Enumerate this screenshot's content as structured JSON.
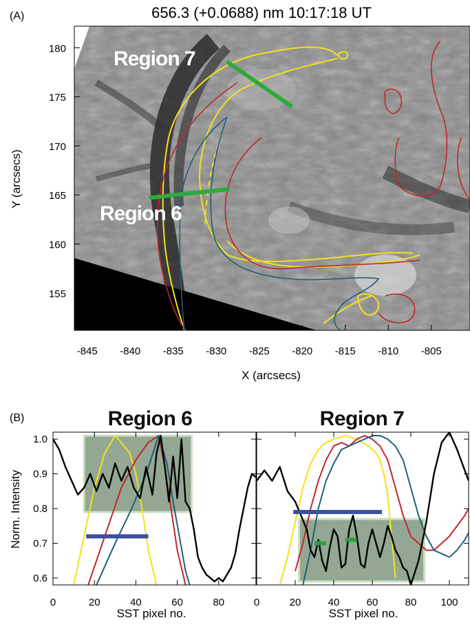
{
  "panel_a": {
    "label": "(A)",
    "title": "656.3 (+0.0688) nm   10:17:18 UT",
    "region7_label": "Region 7",
    "region6_label": "Region 6",
    "colors": {
      "slit": "#2eaa3c",
      "yellow": "#f2e21a",
      "red": "#c2262c",
      "blue": "#1f5f78",
      "image_dark": "#202020"
    },
    "chart_data": {
      "type": "image",
      "xlabel": "X (arcsecs)",
      "ylabel": "Y (arcsecs)",
      "xlim": [
        -846.5,
        -800.5
      ],
      "ylim": [
        151.2,
        182.2
      ],
      "x_ticks": [
        -845,
        -840,
        -835,
        -830,
        -825,
        -820,
        -815,
        -810,
        -805
      ],
      "y_ticks": [
        155,
        160,
        165,
        170,
        175,
        180
      ],
      "slits": [
        {
          "name": "Region 7",
          "x": [
            -828.8,
            -821.2
          ],
          "y": [
            178.6,
            174.0
          ]
        },
        {
          "name": "Region 6",
          "x": [
            -837.8,
            -828.5
          ],
          "y": [
            164.7,
            165.6
          ]
        }
      ]
    }
  },
  "panel_b": {
    "label": "(B)",
    "colors": {
      "black": "#000000",
      "yellow": "#f2e21a",
      "red": "#c2262c",
      "teal": "#1f5f78",
      "blue_bar": "#3c4fa0",
      "green_bar": "#2aa040",
      "shade": "#6f8a6e"
    },
    "chart_data": [
      {
        "type": "line",
        "title": "Region 6",
        "xlabel": "SST pixel no.",
        "ylabel": "Norm. Intensity",
        "xlim": [
          0,
          98
        ],
        "ylim": [
          0.58,
          1.02
        ],
        "x_ticks": [
          0,
          20,
          40,
          60,
          80
        ],
        "y_ticks": [
          0.6,
          0.7,
          0.8,
          0.9,
          1.0
        ],
        "shaded_box": {
          "x": [
            15,
            67
          ],
          "y": [
            0.79,
            1.01
          ]
        },
        "bars": [
          {
            "color": "blue",
            "x": [
              16,
              46
            ],
            "y": 0.72
          }
        ],
        "series": [
          {
            "color": "black",
            "x": [
              0,
              3,
              6,
              9,
              12,
              15,
              18,
              21,
              24,
              27,
              30,
              33,
              36,
              39,
              42,
              45,
              48,
              50,
              52,
              54,
              56,
              58,
              60,
              62,
              64,
              66,
              68,
              70,
              72,
              74,
              76,
              78,
              80,
              82,
              84,
              86,
              88,
              90,
              92,
              94,
              96,
              98
            ],
            "y": [
              1.0,
              0.97,
              0.92,
              0.88,
              0.84,
              0.86,
              0.9,
              0.85,
              0.9,
              0.86,
              0.93,
              0.88,
              0.92,
              0.86,
              0.83,
              0.92,
              0.84,
              0.96,
              1.01,
              0.92,
              0.82,
              0.95,
              0.83,
              1.0,
              0.82,
              0.8,
              0.74,
              0.66,
              0.63,
              0.61,
              0.6,
              0.59,
              0.6,
              0.59,
              0.61,
              0.63,
              0.67,
              0.74,
              0.8,
              0.86,
              0.9,
              0.89
            ]
          },
          {
            "color": "yellow",
            "x": [
              10,
              15,
              20,
              25,
              30,
              33,
              37,
              40,
              43,
              46,
              50
            ],
            "y": [
              0.58,
              0.72,
              0.86,
              0.96,
              1.01,
              0.99,
              0.96,
              0.9,
              0.8,
              0.68,
              0.58
            ]
          },
          {
            "color": "red",
            "x": [
              17,
              25,
              33,
              40,
              46,
              51,
              54,
              57,
              60,
              64
            ],
            "y": [
              0.58,
              0.72,
              0.86,
              0.94,
              0.99,
              1.01,
              0.92,
              0.8,
              0.68,
              0.58
            ]
          },
          {
            "color": "teal",
            "x": [
              21,
              30,
              38,
              45,
              51,
              55,
              58,
              61,
              64,
              66
            ],
            "y": [
              0.58,
              0.7,
              0.8,
              0.9,
              1.01,
              0.93,
              0.82,
              0.72,
              0.62,
              0.58
            ]
          }
        ]
      },
      {
        "type": "line",
        "title": "Region 7",
        "xlabel": "SST pixel no.",
        "ylabel": "",
        "xlim": [
          0,
          110
        ],
        "ylim": [
          0.58,
          1.02
        ],
        "x_ticks": [
          0,
          20,
          40,
          60,
          80,
          100
        ],
        "y_ticks": [
          0.6,
          0.7,
          0.8,
          0.9,
          1.0
        ],
        "shaded_box": {
          "x": [
            22,
            87
          ],
          "y": [
            0.59,
            0.77
          ]
        },
        "bars": [
          {
            "color": "blue",
            "x": [
              19,
              65
            ],
            "y": 0.79
          },
          {
            "color": "green",
            "x": [
              30,
              36
            ],
            "y": 0.7
          },
          {
            "color": "green",
            "x": [
              46,
              52
            ],
            "y": 0.71
          }
        ],
        "series": [
          {
            "color": "black",
            "x": [
              0,
              4,
              8,
              12,
              16,
              20,
              23,
              26,
              28,
              30,
              32,
              34,
              36,
              38,
              40,
              42,
              44,
              46,
              48,
              50,
              52,
              54,
              56,
              58,
              60,
              62,
              64,
              66,
              68,
              70,
              72,
              74,
              76,
              78,
              80,
              84,
              88,
              92,
              96,
              100,
              104,
              108,
              110
            ],
            "y": [
              0.88,
              0.91,
              0.88,
              0.92,
              0.85,
              0.82,
              0.78,
              0.74,
              0.68,
              0.66,
              0.71,
              0.65,
              0.62,
              0.69,
              0.74,
              0.72,
              0.63,
              0.64,
              0.74,
              0.78,
              0.72,
              0.64,
              0.63,
              0.7,
              0.74,
              0.7,
              0.66,
              0.7,
              0.75,
              0.72,
              0.68,
              0.66,
              0.63,
              0.62,
              0.58,
              0.65,
              0.76,
              0.9,
              0.99,
              1.02,
              0.97,
              0.91,
              0.88
            ]
          },
          {
            "color": "yellow",
            "x": [
              12,
              16,
              20,
              24,
              28,
              32,
              36,
              40,
              46,
              52,
              58,
              62,
              64,
              66,
              68,
              70,
              72
            ],
            "y": [
              0.58,
              0.66,
              0.76,
              0.86,
              0.93,
              0.97,
              0.99,
              1.0,
              1.01,
              1.0,
              0.98,
              0.96,
              0.94,
              0.9,
              0.84,
              0.72,
              0.6
            ]
          },
          {
            "color": "red",
            "x": [
              20,
              24,
              28,
              32,
              36,
              40,
              44,
              48,
              52,
              56,
              60,
              64,
              68,
              72,
              76,
              80,
              84,
              88,
              92,
              96,
              100,
              104,
              108,
              110
            ],
            "y": [
              0.62,
              0.7,
              0.8,
              0.88,
              0.94,
              0.98,
              0.99,
              0.98,
              1.0,
              1.01,
              1.0,
              0.98,
              0.94,
              0.86,
              0.78,
              0.72,
              0.7,
              0.68,
              0.68,
              0.7,
              0.72,
              0.75,
              0.78,
              0.8
            ]
          },
          {
            "color": "teal",
            "x": [
              24,
              28,
              32,
              36,
              40,
              44,
              48,
              52,
              56,
              60,
              64,
              68,
              72,
              76,
              80,
              84,
              88,
              92,
              96,
              100,
              104,
              108,
              110
            ],
            "y": [
              0.58,
              0.68,
              0.8,
              0.88,
              0.93,
              0.97,
              0.98,
              0.99,
              1.0,
              1.01,
              1.01,
              1.0,
              0.98,
              0.94,
              0.86,
              0.78,
              0.72,
              0.68,
              0.67,
              0.66,
              0.68,
              0.71,
              0.73
            ]
          }
        ]
      }
    ]
  }
}
